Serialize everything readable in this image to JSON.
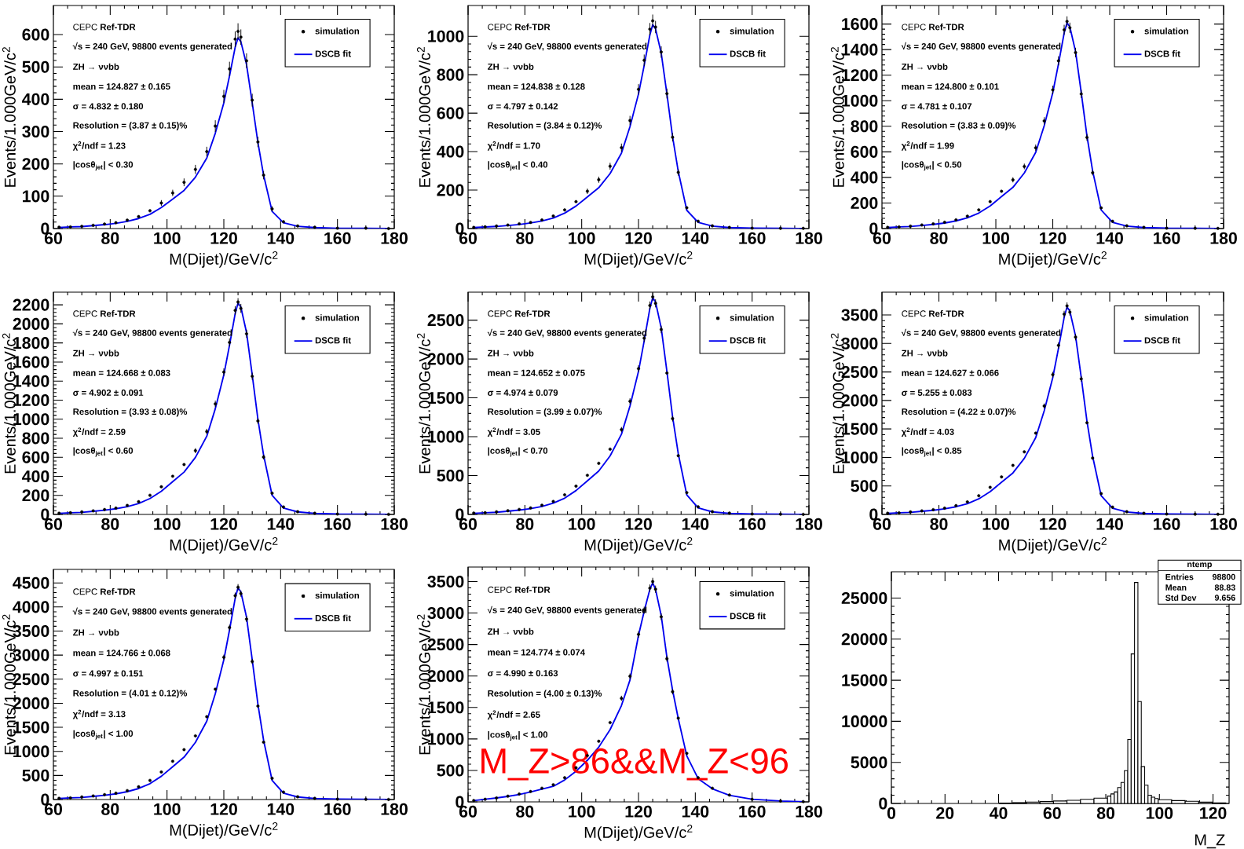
{
  "chart_data": [
    {
      "type": "scatter",
      "legend": "top right",
      "xlabel": "M(Dijet)/GeV/c$^{2}$",
      "ylabel": "Events/1.000GeV/c$^{2}$",
      "xlim": [
        60,
        180
      ],
      "xticks": [
        60,
        80,
        100,
        120,
        140,
        160,
        180
      ],
      "ylim": [
        0,
        690
      ],
      "yticks": [
        0,
        100,
        200,
        300,
        400,
        500,
        600
      ],
      "annotations": [
        "CEPC **Ref-TDR**",
        "√s = 240 GeV, 98800 events generated",
        "ZH → ννbb",
        "mean = 124.827 ± 0.165",
        "σ = 4.832 ± 0.180",
        "Resolution = (3.87 ± 0.15)%",
        "χ$^{2}$/ndf = 1.23",
        "|cosθ$_{jet}$| < 0.30"
      ],
      "x": [
        62,
        66,
        70,
        74,
        78,
        82,
        86,
        90,
        94,
        98,
        102,
        106,
        110,
        114,
        117,
        120,
        122,
        124,
        125,
        126,
        128,
        130,
        132,
        134,
        137,
        141,
        146,
        152,
        160,
        170,
        178
      ],
      "series": [
        {
          "name": "simulation",
          "color": "#000000",
          "values": [
            4,
            5,
            7,
            10,
            14,
            18,
            26,
            37,
            55,
            79,
            110,
            143,
            183,
            238,
            317,
            409,
            494,
            586,
            610,
            592,
            519,
            397,
            268,
            165,
            61,
            21,
            8,
            4,
            1,
            1,
            0
          ],
          "errors": [
            null,
            null,
            null,
            null,
            null,
            null,
            null,
            null,
            null,
            9,
            10,
            12,
            14,
            15,
            18,
            20,
            22,
            24,
            25,
            24,
            23,
            20,
            16,
            13,
            8,
            null,
            null,
            null,
            null,
            null,
            null
          ]
        },
        {
          "name": "DSCB fit",
          "type": "line",
          "marker": "none",
          "color": "#0000ee",
          "values": [
            3,
            5,
            6,
            9,
            12,
            16,
            22,
            31,
            44,
            65,
            91,
            118,
            159,
            218,
            295,
            389,
            472,
            561,
            590,
            578,
            507,
            389,
            266,
            165,
            53,
            18,
            7,
            3,
            1,
            1,
            0
          ]
        }
      ]
    },
    {
      "type": "scatter",
      "legend": "top right",
      "xlabel": "M(Dijet)/GeV/c$^{2}$",
      "ylabel": "Events/1.000GeV/c$^{2}$",
      "xlim": [
        60,
        180
      ],
      "xticks": [
        60,
        80,
        100,
        120,
        140,
        160,
        180
      ],
      "ylim": [
        0,
        1160
      ],
      "yticks": [
        0,
        200,
        400,
        600,
        800,
        1000
      ],
      "annotations": [
        "CEPC **Ref-TDR**",
        "√s = 240 GeV, 98800 events generated",
        "ZH → ννbb",
        "mean = 124.838 ± 0.128",
        "σ = 4.797 ± 0.142",
        "Resolution = (3.84 ± 0.12)%",
        "χ$^{2}$/ndf = 1.70",
        "|cosθ$_{jet}$| < 0.40"
      ],
      "x": [
        62,
        66,
        70,
        74,
        78,
        82,
        86,
        90,
        94,
        98,
        102,
        106,
        110,
        114,
        117,
        120,
        122,
        124,
        125,
        126,
        128,
        130,
        132,
        134,
        137,
        141,
        146,
        152,
        160,
        170,
        178
      ],
      "series": [
        {
          "name": "simulation",
          "color": "#000000",
          "values": [
            6,
            9,
            13,
            18,
            25,
            32,
            45,
            65,
            97,
            140,
            194,
            254,
            324,
            421,
            562,
            724,
            875,
            1037,
            1080,
            1048,
            918,
            702,
            475,
            292,
            108,
            38,
            14,
            6,
            2,
            1,
            1
          ],
          "errors": [
            null,
            null,
            null,
            null,
            null,
            null,
            null,
            null,
            null,
            null,
            14,
            16,
            18,
            21,
            24,
            27,
            30,
            32,
            33,
            32,
            30,
            26,
            22,
            17,
            null,
            null,
            null,
            null,
            null,
            null,
            null
          ]
        },
        {
          "name": "DSCB fit",
          "type": "line",
          "marker": "none",
          "color": "#0000ee",
          "values": [
            5,
            8,
            11,
            16,
            21,
            29,
            39,
            55,
            80,
            117,
            164,
            212,
            286,
            392,
            530,
            700,
            848,
            1007,
            1060,
            1039,
            912,
            700,
            477,
            297,
            95,
            32,
            13,
            5,
            2,
            1,
            0
          ]
        }
      ]
    },
    {
      "type": "scatter",
      "legend": "top right",
      "xlabel": "M(Dijet)/GeV/c$^{2}$",
      "ylabel": "Events/1.000GeV/c$^{2}$",
      "xlim": [
        60,
        180
      ],
      "xticks": [
        60,
        80,
        100,
        120,
        140,
        160,
        180
      ],
      "ylim": [
        0,
        1745
      ],
      "yticks": [
        0,
        200,
        400,
        600,
        800,
        1000,
        1200,
        1400,
        1600
      ],
      "annotations": [
        "CEPC **Ref-TDR**",
        "√s = 240 GeV, 98800 events generated",
        "ZH → ννbb",
        "mean = 124.800 ± 0.101",
        "σ = 4.781 ± 0.107",
        "Resolution = (3.83 ± 0.09)%",
        "χ$^{2}$/ndf = 1.99",
        "|cosθ$_{jet}$| < 0.50"
      ],
      "x": [
        62,
        66,
        70,
        74,
        78,
        82,
        86,
        90,
        94,
        98,
        102,
        106,
        110,
        114,
        117,
        120,
        122,
        124,
        125,
        126,
        128,
        130,
        132,
        134,
        137,
        141,
        146,
        152,
        160,
        170,
        178
      ],
      "series": [
        {
          "name": "simulation",
          "color": "#000000",
          "values": [
            10,
            13,
            19,
            28,
            37,
            49,
            68,
            97,
            146,
            211,
            292,
            381,
            486,
            632,
            842,
            1085,
            1312,
            1555,
            1620,
            1571,
            1377,
            1053,
            713,
            437,
            162,
            57,
            21,
            10,
            3,
            2,
            1
          ],
          "errors": [
            null,
            null,
            null,
            null,
            null,
            null,
            null,
            null,
            null,
            null,
            null,
            20,
            22,
            25,
            29,
            33,
            36,
            39,
            40,
            40,
            37,
            32,
            27,
            21,
            null,
            null,
            null,
            null,
            null,
            null,
            null
          ]
        },
        {
          "name": "DSCB fit",
          "type": "line",
          "marker": "none",
          "color": "#0000ee",
          "values": [
            8,
            13,
            16,
            24,
            32,
            43,
            60,
            84,
            121,
            177,
            250,
            322,
            435,
            596,
            805,
            1063,
            1288,
            1530,
            1610,
            1578,
            1385,
            1063,
            725,
            451,
            145,
            48,
            19,
            8,
            3,
            2,
            0
          ]
        }
      ]
    },
    {
      "type": "scatter",
      "legend": "top right",
      "xlabel": "M(Dijet)/GeV/c$^{2}$",
      "ylabel": "Events/1.000GeV/c$^{2}$",
      "xlim": [
        60,
        180
      ],
      "xticks": [
        60,
        80,
        100,
        120,
        140,
        160,
        180
      ],
      "ylim": [
        0,
        2333
      ],
      "yticks": [
        0,
        200,
        400,
        600,
        800,
        1000,
        1200,
        1400,
        1600,
        1800,
        2000,
        2200
      ],
      "annotations": [
        "CEPC **Ref-TDR**",
        "√s = 240 GeV, 98800 events generated",
        "ZH → ννbb",
        "mean = 124.668 ± 0.083",
        "σ = 4.902 ± 0.091",
        "Resolution = (3.93 ± 0.08)%",
        "χ$^{2}$/ndf = 2.59",
        "|cosθ$_{jet}$| < 0.60"
      ],
      "x": [
        62,
        66,
        70,
        74,
        78,
        82,
        86,
        90,
        94,
        98,
        102,
        106,
        110,
        114,
        117,
        120,
        122,
        124,
        125,
        126,
        128,
        130,
        132,
        134,
        137,
        141,
        146,
        152,
        160,
        170,
        178
      ],
      "series": [
        {
          "name": "simulation",
          "color": "#000000",
          "values": [
            13,
            18,
            27,
            38,
            51,
            67,
            94,
            134,
            201,
            290,
            401,
            524,
            669,
            870,
            1160,
            1494,
            1806,
            2141,
            2230,
            2163,
            1896,
            1450,
            981,
            602,
            223,
            78,
            29,
            13,
            4,
            2,
            1
          ],
          "errors": [
            null,
            null,
            null,
            null,
            null,
            null,
            null,
            null,
            null,
            null,
            null,
            null,
            26,
            29,
            34,
            39,
            42,
            46,
            40,
            47,
            44,
            38,
            31,
            25,
            null,
            null,
            null,
            null,
            null,
            null,
            null
          ]
        },
        {
          "name": "DSCB fit",
          "type": "line",
          "marker": "none",
          "color": "#0000ee",
          "values": [
            11,
            18,
            22,
            33,
            44,
            60,
            82,
            115,
            167,
            244,
            344,
            444,
            599,
            821,
            1110,
            1465,
            1776,
            2109,
            2220,
            2176,
            1909,
            1465,
            999,
            622,
            200,
            67,
            27,
            11,
            4,
            2,
            0
          ]
        }
      ]
    },
    {
      "type": "scatter",
      "legend": "top right",
      "xlabel": "M(Dijet)/GeV/c$^{2}$",
      "ylabel": "Events/1.000GeV/c$^{2}$",
      "xlim": [
        60,
        180
      ],
      "xticks": [
        60,
        80,
        100,
        120,
        140,
        160,
        180
      ],
      "ylim": [
        0,
        2860
      ],
      "yticks": [
        0,
        500,
        1000,
        1500,
        2000,
        2500
      ],
      "annotations": [
        "CEPC **Ref-TDR**",
        "√s = 240 GeV, 98800 events generated",
        "ZH → ννbb",
        "mean = 124.652 ± 0.075",
        "σ = 4.974 ± 0.079",
        "Resolution = (3.99 ± 0.07)%",
        "χ$^{2}$/ndf = 3.05",
        "|cosθ$_{jet}$| < 0.70"
      ],
      "x": [
        62,
        66,
        70,
        74,
        78,
        82,
        86,
        90,
        94,
        98,
        102,
        106,
        110,
        114,
        117,
        120,
        122,
        124,
        125,
        126,
        128,
        130,
        132,
        134,
        137,
        141,
        146,
        152,
        160,
        170,
        178
      ],
      "series": [
        {
          "name": "simulation",
          "color": "#000000",
          "values": [
            17,
            22,
            34,
            48,
            64,
            84,
            118,
            168,
            252,
            364,
            504,
            658,
            840,
            1092,
            1456,
            1876,
            2268,
            2688,
            2800,
            2716,
            2380,
            1820,
            1232,
            756,
            280,
            98,
            36,
            17,
            6,
            3,
            1
          ],
          "errors": [
            null,
            null,
            null,
            null,
            null,
            null,
            null,
            null,
            null,
            null,
            null,
            null,
            null,
            33,
            38,
            43,
            48,
            52,
            53,
            52,
            49,
            null,
            35,
            null,
            null,
            null,
            null,
            null,
            null,
            null,
            null
          ]
        },
        {
          "name": "DSCB fit",
          "type": "line",
          "marker": "none",
          "color": "#0000ee",
          "values": [
            14,
            22,
            28,
            42,
            56,
            75,
            103,
            145,
            209,
            307,
            432,
            558,
            753,
            1032,
            1395,
            1841,
            2232,
            2651,
            2790,
            2734,
            2399,
            1841,
            1256,
            781,
            251,
            84,
            33,
            14,
            6,
            3,
            0
          ]
        }
      ]
    },
    {
      "type": "scatter",
      "legend": "top right",
      "xlabel": "M(Dijet)/GeV/c$^{2}$",
      "ylabel": "Events/1.000GeV/c$^{2}$",
      "xlim": [
        60,
        180
      ],
      "xticks": [
        60,
        80,
        100,
        120,
        140,
        160,
        180
      ],
      "ylim": [
        0,
        3900
      ],
      "yticks": [
        0,
        500,
        1000,
        1500,
        2000,
        2500,
        3000,
        3500
      ],
      "annotations": [
        "CEPC **Ref-TDR**",
        "√s = 240 GeV, 98800 events generated",
        "ZH → ννbb",
        "mean = 124.627 ± 0.066",
        "σ = 5.255 ± 0.083",
        "Resolution = (4.22 ± 0.07)%",
        "χ$^{2}$/ndf = 4.03",
        "|cosθ$_{jet}$| < 0.85"
      ],
      "x": [
        62,
        66,
        70,
        74,
        78,
        82,
        86,
        90,
        94,
        98,
        102,
        106,
        110,
        114,
        117,
        120,
        122,
        124,
        125,
        126,
        128,
        130,
        132,
        134,
        137,
        141,
        146,
        152,
        160,
        170,
        178
      ],
      "series": [
        {
          "name": "simulation",
          "color": "#000000",
          "values": [
            22,
            29,
            44,
            62,
            84,
            110,
            154,
            220,
            329,
            476,
            659,
            860,
            1098,
            1427,
            1903,
            2452,
            2965,
            3514,
            3660,
            3550,
            3111,
            2379,
            1610,
            988,
            366,
            128,
            48,
            22,
            7,
            4,
            2
          ],
          "errors": [
            null,
            null,
            null,
            null,
            null,
            null,
            null,
            null,
            null,
            null,
            null,
            null,
            null,
            null,
            44,
            50,
            54,
            59,
            60,
            60,
            56,
            49,
            null,
            null,
            null,
            null,
            null,
            null,
            null,
            null,
            null
          ]
        },
        {
          "name": "DSCB fit",
          "type": "line",
          "marker": "none",
          "color": "#0000ee",
          "values": [
            18,
            29,
            36,
            55,
            73,
            98,
            135,
            189,
            273,
            400,
            564,
            728,
            983,
            1347,
            1820,
            2402,
            2912,
            3458,
            3640,
            3567,
            3130,
            2402,
            1638,
            1019,
            328,
            109,
            44,
            18,
            7,
            4,
            0
          ]
        }
      ]
    },
    {
      "type": "scatter",
      "legend": "top right",
      "xlabel": "M(Dijet)/GeV/c$^{2}$",
      "ylabel": "Events/1.000GeV/c$^{2}$",
      "xlim": [
        60,
        180
      ],
      "xticks": [
        60,
        80,
        100,
        120,
        140,
        160,
        180
      ],
      "ylim": [
        0,
        4780
      ],
      "yticks": [
        0,
        500,
        1000,
        1500,
        2000,
        2500,
        3000,
        3500,
        4000,
        4500
      ],
      "annotations": [
        "CEPC **Ref-TDR**",
        "√s = 240 GeV, 98800 events generated",
        "ZH → ννbb",
        "mean = 124.766 ± 0.068",
        "σ = 4.997 ± 0.151",
        "Resolution = (4.01 ± 0.12)%",
        "χ$^{2}$/ndf = 3.13",
        "|cosθ$_{jet}$| < 1.00"
      ],
      "x": [
        62,
        66,
        70,
        74,
        78,
        82,
        86,
        90,
        94,
        98,
        102,
        106,
        110,
        114,
        117,
        120,
        122,
        124,
        125,
        126,
        128,
        130,
        132,
        134,
        137,
        141,
        146,
        152,
        160,
        170,
        178
      ],
      "series": [
        {
          "name": "simulation",
          "color": "#000000",
          "values": [
            26,
            35,
            53,
            75,
            101,
            132,
            185,
            265,
            397,
            573,
            794,
            1036,
            1323,
            1720,
            2293,
            2955,
            3572,
            4234,
            4410,
            4278,
            3749,
            2867,
            1940,
            1191,
            441,
            154,
            57,
            26,
            9,
            4,
            2
          ],
          "errors": [
            null,
            null,
            null,
            null,
            null,
            null,
            null,
            null,
            null,
            null,
            null,
            null,
            null,
            null,
            null,
            54,
            60,
            65,
            66,
            65,
            61,
            54,
            null,
            null,
            null,
            null,
            null,
            null,
            null,
            null,
            null
          ]
        },
        {
          "name": "DSCB fit",
          "type": "line",
          "marker": "none",
          "color": "#0000ee",
          "values": [
            22,
            35,
            44,
            66,
            88,
            119,
            163,
            229,
            330,
            484,
            682,
            880,
            1188,
            1628,
            2200,
            2904,
            3520,
            4180,
            4400,
            4312,
            3784,
            2904,
            1980,
            1232,
            396,
            132,
            53,
            22,
            9,
            4,
            0
          ]
        }
      ]
    },
    {
      "type": "scatter",
      "legend": "top right",
      "xlabel": "M(Dijet)/GeV/c$^{2}$",
      "ylabel": "Events/1.000GeV/c$^{2}$",
      "xlim": [
        60,
        180
      ],
      "xticks": [
        60,
        80,
        100,
        120,
        140,
        160,
        180
      ],
      "ylim": [
        0,
        3730
      ],
      "yticks": [
        0,
        500,
        1000,
        1500,
        2000,
        2500,
        3000,
        3500
      ],
      "annotations": [
        "CEPC **Ref-TDR**",
        "√s = 240 GeV, 98800 events generated",
        "ZH → ννbb",
        "mean = 124.774 ± 0.074",
        "σ = 4.990 ± 0.163",
        "Resolution = (4.00 ± 0.13)%",
        "χ$^{2}$/ndf = 2.65",
        "|cosθ$_{jet}$| < 1.00",
        "M_Z>86&&M_Z<96"
      ],
      "x": [
        62,
        66,
        70,
        74,
        78,
        82,
        86,
        90,
        94,
        98,
        102,
        106,
        110,
        114,
        117,
        120,
        122,
        124,
        125,
        126,
        128,
        130,
        132,
        134,
        137,
        141,
        146,
        152,
        160,
        170,
        178
      ],
      "series": [
        {
          "name": "simulation",
          "color": "#000000",
          "values": [
            21,
            42,
            63,
            91,
            126,
            165,
            217,
            273,
            385,
            543,
            735,
            963,
            1260,
            1645,
            1995,
            2660,
            3045,
            3395,
            3500,
            3378,
            2940,
            2275,
            1750,
            1330,
            770,
            385,
            217,
            109,
            42,
            14,
            4
          ],
          "errors": [
            null,
            null,
            null,
            null,
            null,
            null,
            null,
            null,
            null,
            null,
            null,
            null,
            null,
            41,
            45,
            52,
            55,
            58,
            59,
            58,
            54,
            48,
            42,
            null,
            null,
            null,
            null,
            null,
            null,
            null,
            null
          ]
        },
        {
          "name": "DSCB fit",
          "type": "line",
          "marker": "none",
          "color": "#0000ee",
          "values": [
            21,
            42,
            63,
            87,
            118,
            157,
            202,
            247,
            348,
            487,
            661,
            870,
            1148,
            1531,
            1935,
            2645,
            3028,
            3376,
            3480,
            3376,
            2958,
            2297,
            1775,
            1322,
            731,
            369,
            209,
            104,
            42,
            14,
            3
          ]
        }
      ]
    },
    {
      "type": "histogram",
      "color": "#000000",
      "xlabel": "M_Z",
      "xlim": [
        0,
        126
      ],
      "xticks": [
        0,
        20,
        40,
        60,
        80,
        100,
        120
      ],
      "ylim": [
        0,
        28200
      ],
      "yticks": [
        0,
        5000,
        10000,
        15000,
        20000,
        25000
      ],
      "annotations": [
        "ntemp",
        "Entries",
        "98800",
        "Mean",
        "88.83",
        "Std Dev",
        "9.656"
      ],
      "bins": [
        40.32,
        45.36,
        50.4,
        55.44,
        60.48,
        65.52,
        70.56,
        75.6,
        80.64,
        81.9,
        83.16,
        84.42,
        85.68,
        86.94,
        88.2,
        89.46,
        90.72,
        91.98,
        93.24,
        94.5,
        95.76,
        97.02,
        98.28,
        99.54,
        104.58,
        109.62,
        114.66,
        119.7,
        124.74
      ],
      "values": [
        50,
        100,
        170,
        230,
        300,
        380,
        500,
        650,
        900,
        1160,
        1400,
        1930,
        2560,
        3990,
        7800,
        18200,
        26900,
        12400,
        4480,
        2230,
        1000,
        760,
        600,
        450,
        350,
        270,
        160,
        70
      ]
    }
  ]
}
